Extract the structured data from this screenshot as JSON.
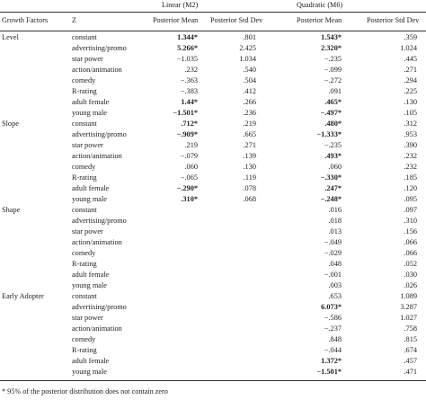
{
  "headers": {
    "group_linear": "Linear (M2)",
    "group_quadratic": "Quadratic (M6)",
    "col_factor": "Growth Factors",
    "col_z": "Z",
    "col_m2_mean": "Posterior Mean",
    "col_m2_sd": "Posterior Std Dev",
    "col_m6_mean": "Posterior Mean",
    "col_m6_sd": "Posterior Std Dev"
  },
  "rows": [
    {
      "group": "Level",
      "z": "constant",
      "m2_mean": "1.344*",
      "m2_bold": true,
      "m2_sd": ".801",
      "m6_mean": "1.543*",
      "m6_bold": true,
      "m6_sd": ".359"
    },
    {
      "group": "",
      "z": "advertising/promo",
      "m2_mean": "5.266*",
      "m2_bold": true,
      "m2_sd": "2.425",
      "m6_mean": "2.320*",
      "m6_bold": true,
      "m6_sd": "1.024"
    },
    {
      "group": "",
      "z": "star power",
      "m2_mean": "−1.035",
      "m2_bold": false,
      "m2_sd": "1.034",
      "m6_mean": "−.235",
      "m6_bold": false,
      "m6_sd": ".445"
    },
    {
      "group": "",
      "z": "action/animation",
      "m2_mean": ".232",
      "m2_bold": false,
      "m2_sd": ".540",
      "m6_mean": "−.099",
      "m6_bold": false,
      "m6_sd": ".271"
    },
    {
      "group": "",
      "z": "comedy",
      "m2_mean": "−.363",
      "m2_bold": false,
      "m2_sd": ".504",
      "m6_mean": "−.272",
      "m6_bold": false,
      "m6_sd": ".294"
    },
    {
      "group": "",
      "z": "R-rating",
      "m2_mean": "−.383",
      "m2_bold": false,
      "m2_sd": ".412",
      "m6_mean": ".091",
      "m6_bold": false,
      "m6_sd": ".225"
    },
    {
      "group": "",
      "z": "adult female",
      "m2_mean": "1.44*",
      "m2_bold": true,
      "m2_sd": ".266",
      "m6_mean": ".465*",
      "m6_bold": true,
      "m6_sd": ".130"
    },
    {
      "group": "",
      "z": "young male",
      "m2_mean": "−1.501*",
      "m2_bold": true,
      "m2_sd": ".236",
      "m6_mean": "−.497*",
      "m6_bold": true,
      "m6_sd": ".105"
    },
    {
      "group": "Slope",
      "z": "constant",
      "m2_mean": ".712*",
      "m2_bold": true,
      "m2_sd": ".219",
      "m6_mean": ".480*",
      "m6_bold": true,
      "m6_sd": ".312"
    },
    {
      "group": "",
      "z": "advertising/promo",
      "m2_mean": "−.909*",
      "m2_bold": true,
      "m2_sd": ".665",
      "m6_mean": "−1.333*",
      "m6_bold": true,
      "m6_sd": ".953"
    },
    {
      "group": "",
      "z": "star power",
      "m2_mean": ".219",
      "m2_bold": false,
      "m2_sd": ".271",
      "m6_mean": "−.235",
      "m6_bold": false,
      "m6_sd": ".390"
    },
    {
      "group": "",
      "z": "action/animation",
      "m2_mean": "−.079",
      "m2_bold": false,
      "m2_sd": ".139",
      "m6_mean": ".493*",
      "m6_bold": true,
      "m6_sd": ".232"
    },
    {
      "group": "",
      "z": "comedy",
      "m2_mean": ".060",
      "m2_bold": false,
      "m2_sd": ".130",
      "m6_mean": ".060",
      "m6_bold": false,
      "m6_sd": ".232"
    },
    {
      "group": "",
      "z": "R-rating",
      "m2_mean": "−.065",
      "m2_bold": false,
      "m2_sd": ".119",
      "m6_mean": "−.330*",
      "m6_bold": true,
      "m6_sd": ".185"
    },
    {
      "group": "",
      "z": "adult female",
      "m2_mean": "−.290*",
      "m2_bold": true,
      "m2_sd": ".078",
      "m6_mean": ".247*",
      "m6_bold": true,
      "m6_sd": ".120"
    },
    {
      "group": "",
      "z": "young male",
      "m2_mean": ".310*",
      "m2_bold": true,
      "m2_sd": ".068",
      "m6_mean": "−.248*",
      "m6_bold": true,
      "m6_sd": ".095"
    },
    {
      "group": "Shape",
      "z": "constant",
      "m2_mean": "",
      "m2_bold": false,
      "m2_sd": "",
      "m6_mean": ".016",
      "m6_bold": false,
      "m6_sd": ".097"
    },
    {
      "group": "",
      "z": "advertising/promo",
      "m2_mean": "",
      "m2_bold": false,
      "m2_sd": "",
      "m6_mean": ".018",
      "m6_bold": false,
      "m6_sd": ".310"
    },
    {
      "group": "",
      "z": "star power",
      "m2_mean": "",
      "m2_bold": false,
      "m2_sd": "",
      "m6_mean": ".013",
      "m6_bold": false,
      "m6_sd": ".156"
    },
    {
      "group": "",
      "z": "action/animation",
      "m2_mean": "",
      "m2_bold": false,
      "m2_sd": "",
      "m6_mean": "−.049",
      "m6_bold": false,
      "m6_sd": ".066"
    },
    {
      "group": "",
      "z": "comedy",
      "m2_mean": "",
      "m2_bold": false,
      "m2_sd": "",
      "m6_mean": "−.029",
      "m6_bold": false,
      "m6_sd": ".066"
    },
    {
      "group": "",
      "z": "R-rating",
      "m2_mean": "",
      "m2_bold": false,
      "m2_sd": "",
      "m6_mean": ".048",
      "m6_bold": false,
      "m6_sd": ".052"
    },
    {
      "group": "",
      "z": "adult female",
      "m2_mean": "",
      "m2_bold": false,
      "m2_sd": "",
      "m6_mean": "−.001",
      "m6_bold": false,
      "m6_sd": ".030"
    },
    {
      "group": "",
      "z": "young male",
      "m2_mean": "",
      "m2_bold": false,
      "m2_sd": "",
      "m6_mean": ".003",
      "m6_bold": false,
      "m6_sd": ".026"
    },
    {
      "group": "Early Adopter",
      "z": "constant",
      "m2_mean": "",
      "m2_bold": false,
      "m2_sd": "",
      "m6_mean": ".653",
      "m6_bold": false,
      "m6_sd": "1.089"
    },
    {
      "group": "",
      "z": "advertising/promo",
      "m2_mean": "",
      "m2_bold": false,
      "m2_sd": "",
      "m6_mean": "6.073*",
      "m6_bold": true,
      "m6_sd": "3.287"
    },
    {
      "group": "",
      "z": "star power",
      "m2_mean": "",
      "m2_bold": false,
      "m2_sd": "",
      "m6_mean": "−.586",
      "m6_bold": false,
      "m6_sd": "1.027"
    },
    {
      "group": "",
      "z": "action/animation",
      "m2_mean": "",
      "m2_bold": false,
      "m2_sd": "",
      "m6_mean": "−.237",
      "m6_bold": false,
      "m6_sd": ".758"
    },
    {
      "group": "",
      "z": "comedy",
      "m2_mean": "",
      "m2_bold": false,
      "m2_sd": "",
      "m6_mean": ".848",
      "m6_bold": false,
      "m6_sd": ".815"
    },
    {
      "group": "",
      "z": "R-rating",
      "m2_mean": "",
      "m2_bold": false,
      "m2_sd": "",
      "m6_mean": "−.044",
      "m6_bold": false,
      "m6_sd": ".674"
    },
    {
      "group": "",
      "z": "adult female",
      "m2_mean": "",
      "m2_bold": false,
      "m2_sd": "",
      "m6_mean": "1.372*",
      "m6_bold": true,
      "m6_sd": ".457"
    },
    {
      "group": "",
      "z": "young male",
      "m2_mean": "",
      "m2_bold": false,
      "m2_sd": "",
      "m6_mean": "−1.501*",
      "m6_bold": true,
      "m6_sd": ".471"
    }
  ],
  "footnote": "* 95% of the posterior distribution does not contain zero"
}
